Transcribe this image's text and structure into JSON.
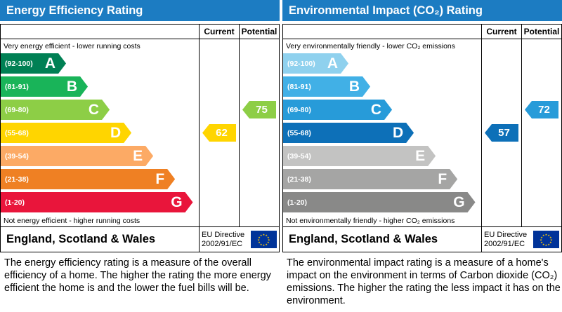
{
  "labels": {
    "current": "Current",
    "potential": "Potential"
  },
  "footer": {
    "region": "England, Scotland & Wales",
    "directive_line1": "EU Directive",
    "directive_line2": "2002/91/EC"
  },
  "colors": {
    "header-blue": "#1c7cc2",
    "flag-blue": "#003399",
    "star-yellow": "#ffcc00"
  },
  "chart_data": [
    {
      "type": "bar",
      "title": "Energy Efficiency Rating",
      "top_note": "Very energy efficient - lower running costs",
      "bottom_note": "Not energy efficient - higher running costs",
      "bands": [
        {
          "letter": "A",
          "range": "(92-100)",
          "min": 92,
          "max": 100,
          "color": "#008054",
          "width_pct": 33
        },
        {
          "letter": "B",
          "range": "(81-91)",
          "min": 81,
          "max": 91,
          "color": "#19b459",
          "width_pct": 44
        },
        {
          "letter": "C",
          "range": "(69-80)",
          "min": 69,
          "max": 80,
          "color": "#8dce46",
          "width_pct": 55
        },
        {
          "letter": "D",
          "range": "(55-68)",
          "min": 55,
          "max": 68,
          "color": "#ffd500",
          "width_pct": 66
        },
        {
          "letter": "E",
          "range": "(39-54)",
          "min": 39,
          "max": 54,
          "color": "#fcaa65",
          "width_pct": 77
        },
        {
          "letter": "F",
          "range": "(21-38)",
          "min": 21,
          "max": 38,
          "color": "#ef8023",
          "width_pct": 88
        },
        {
          "letter": "G",
          "range": "(1-20)",
          "min": 1,
          "max": 20,
          "color": "#e9153b",
          "width_pct": 97
        }
      ],
      "current": {
        "value": 62,
        "band": "D",
        "band_index": 3,
        "color": "#ffd500"
      },
      "potential": {
        "value": 75,
        "band": "C",
        "band_index": 2,
        "color": "#8dce46"
      },
      "description": "The energy efficiency rating is a measure of the overall efficiency of a home. The higher the rating the more energy efficient the home is and the lower the fuel bills will be."
    },
    {
      "type": "bar",
      "title": "Environmental Impact (CO₂) Rating",
      "top_note": "Very environmentally friendly - lower CO₂ emissions",
      "bottom_note": "Not environmentally friendly - higher CO₂ emissions",
      "bands": [
        {
          "letter": "A",
          "range": "(92-100)",
          "min": 92,
          "max": 100,
          "color": "#8fd1ee",
          "width_pct": 33
        },
        {
          "letter": "B",
          "range": "(81-91)",
          "min": 81,
          "max": 91,
          "color": "#41b0e6",
          "width_pct": 44
        },
        {
          "letter": "C",
          "range": "(69-80)",
          "min": 69,
          "max": 80,
          "color": "#279bd9",
          "width_pct": 55
        },
        {
          "letter": "D",
          "range": "(55-68)",
          "min": 55,
          "max": 68,
          "color": "#0d70b8",
          "width_pct": 66
        },
        {
          "letter": "E",
          "range": "(39-54)",
          "min": 39,
          "max": 54,
          "color": "#c3c3c2",
          "width_pct": 77
        },
        {
          "letter": "F",
          "range": "(21-38)",
          "min": 21,
          "max": 38,
          "color": "#a5a5a4",
          "width_pct": 88
        },
        {
          "letter": "G",
          "range": "(1-20)",
          "min": 1,
          "max": 20,
          "color": "#898988",
          "width_pct": 97
        }
      ],
      "current": {
        "value": 57,
        "band": "D",
        "band_index": 3,
        "color": "#0d70b8"
      },
      "potential": {
        "value": 72,
        "band": "C",
        "band_index": 2,
        "color": "#279bd9"
      },
      "description": "The environmental impact rating is a measure of a home's impact on the environment in terms of Carbon dioxide (CO₂) emissions. The higher the rating the less impact it has on the environment."
    }
  ]
}
